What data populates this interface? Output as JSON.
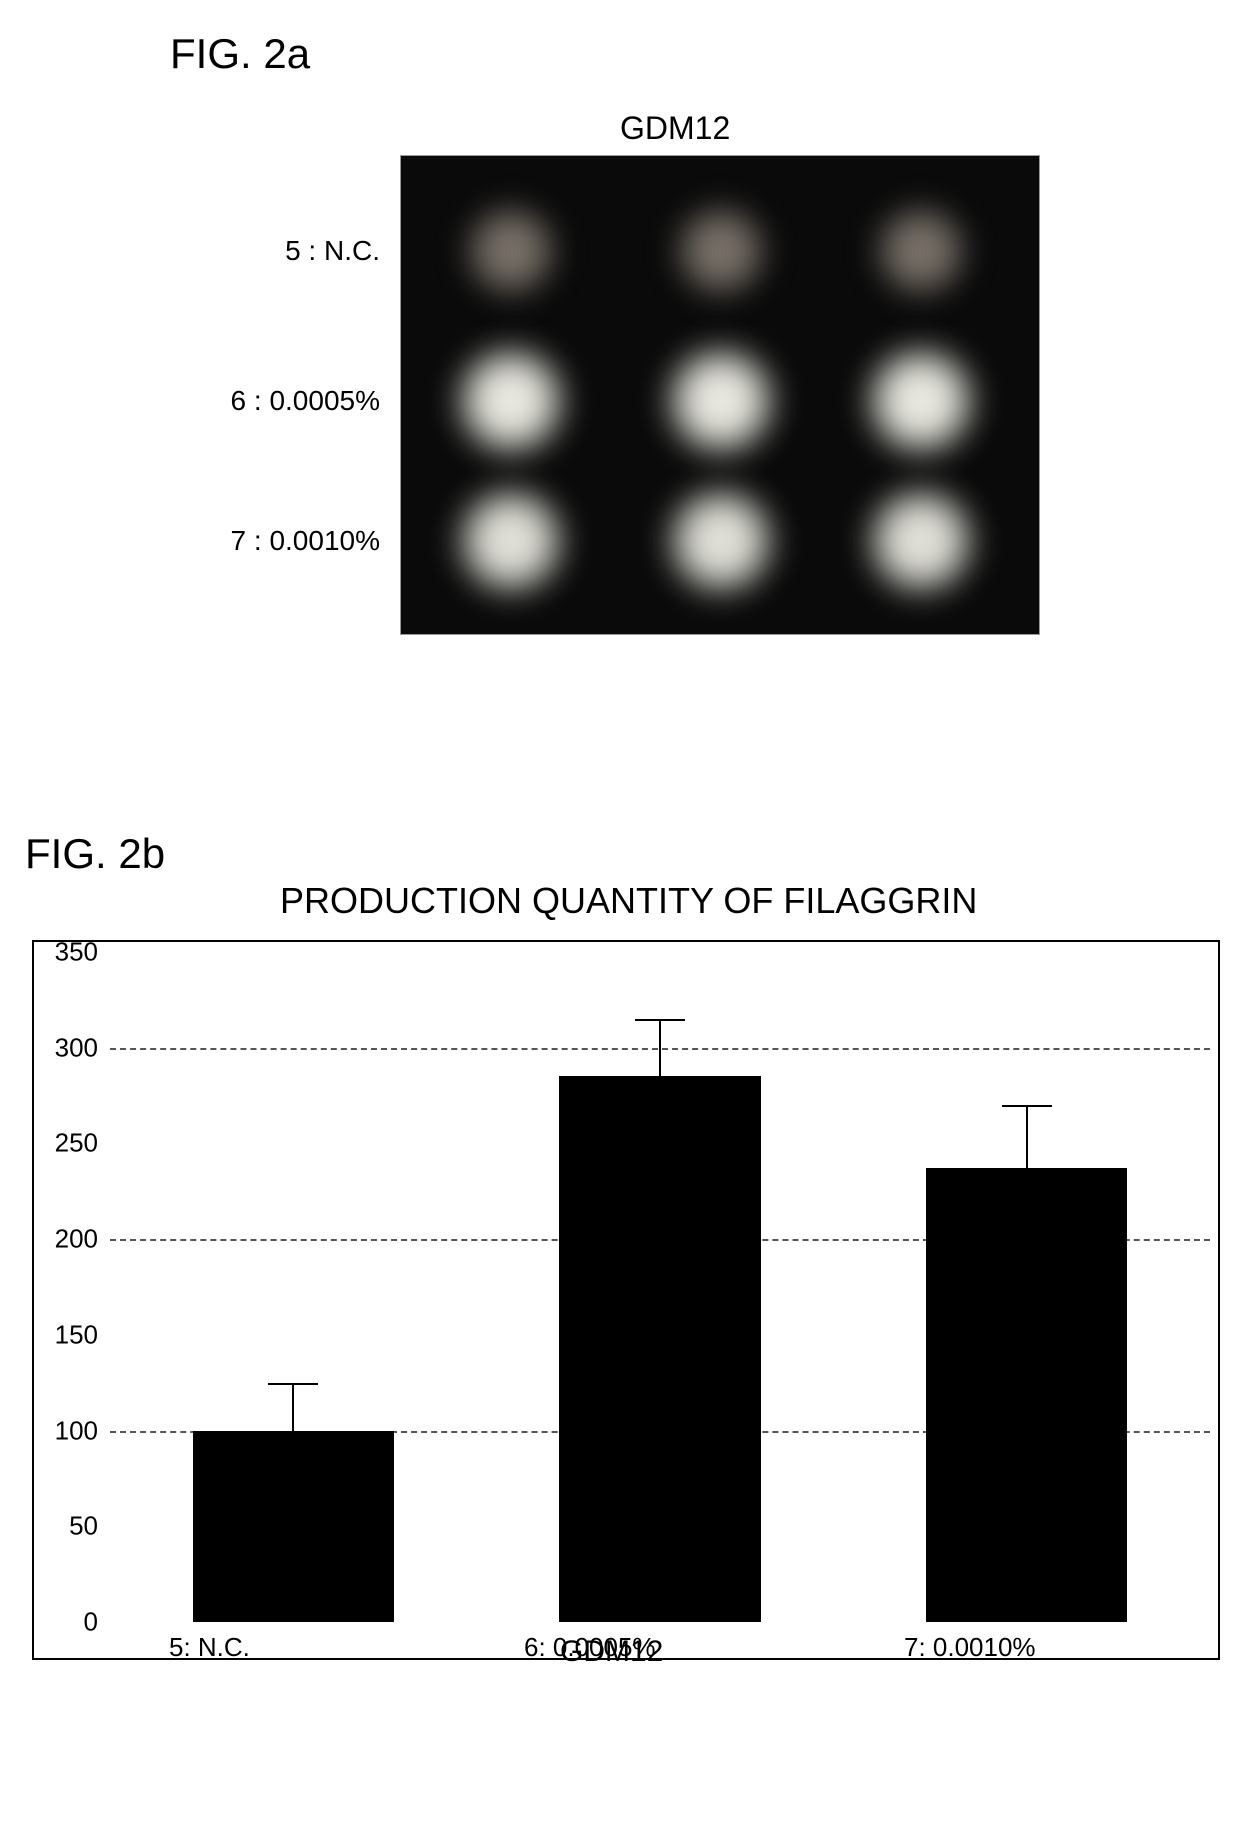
{
  "fig2a": {
    "label": "FIG. 2a",
    "blot": {
      "title": "GDM12",
      "background_color": "#0a0a0a",
      "rows": [
        {
          "label": "5 : N.C.",
          "spot_color": "#787068",
          "spot_size": 100
        },
        {
          "label": "6 : 0.0005%",
          "spot_color": "#e8e8e0",
          "spot_size": 120
        },
        {
          "label": "7 : 0.0010%",
          "spot_color": "#e0e0d8",
          "spot_size": 118
        }
      ]
    }
  },
  "fig2b": {
    "label": "FIG. 2b",
    "chart": {
      "type": "bar",
      "title": "PRODUCTION QUANTITY OF FILAGGRIN",
      "categories": [
        "5:  N.C.",
        "6:  0.0005%",
        "7:  0.0010%"
      ],
      "values": [
        100,
        285,
        237
      ],
      "errors": [
        25,
        30,
        33
      ],
      "bar_color": "#000000",
      "ylim": [
        0,
        350
      ],
      "ytick_step": 50,
      "yticks": [
        0,
        50,
        100,
        150,
        200,
        250,
        300,
        350
      ],
      "gridline_values": [
        100,
        200,
        300
      ],
      "grid_color": "#555555",
      "background_color": "#ffffff",
      "border_color": "#000000",
      "bar_width_ratio": 0.55,
      "xlabel": "GDM12",
      "label_fontsize": 26,
      "title_fontsize": 36
    }
  }
}
